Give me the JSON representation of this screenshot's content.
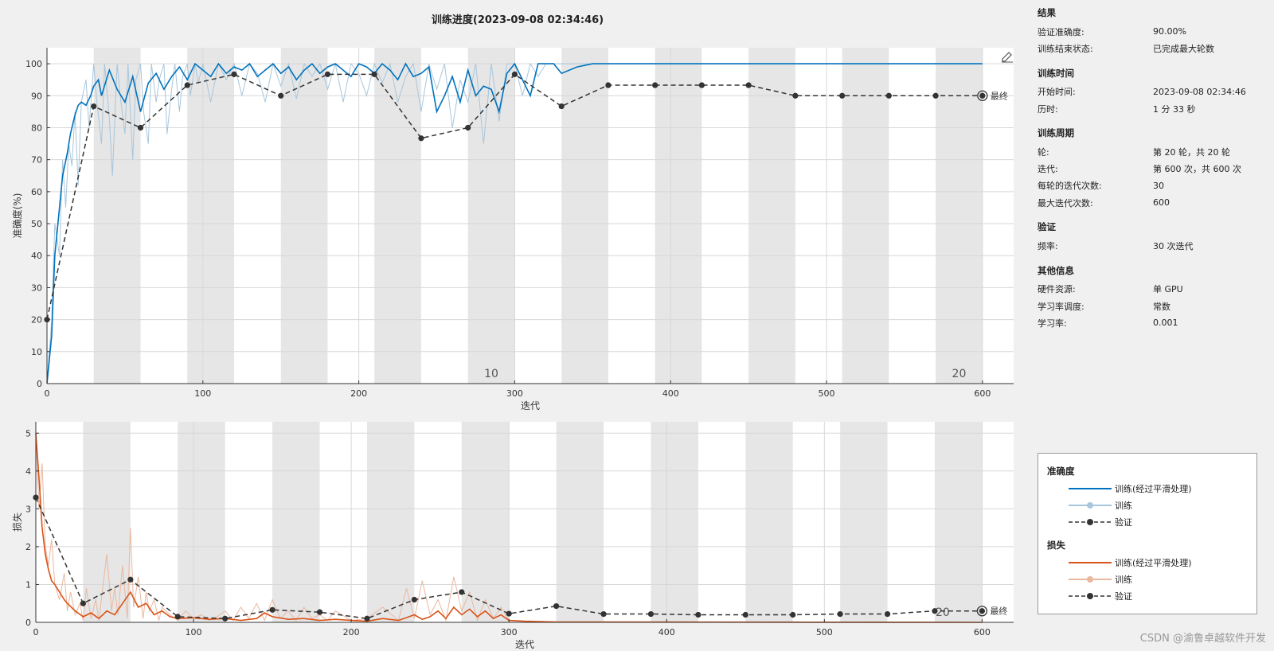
{
  "window": {
    "title": "训练进度(2023-09-08 02:34:46)"
  },
  "info": {
    "sections": [
      {
        "title": "结果",
        "rows": [
          {
            "k": "验证准确度:",
            "v": "90.00%"
          },
          {
            "k": "训练结束状态:",
            "v": "已完成最大轮数"
          }
        ]
      },
      {
        "title": "训练时间",
        "rows": [
          {
            "k": "开始时间:",
            "v": "2023-09-08 02:34:46"
          },
          {
            "k": "历时:",
            "v": "1 分 33 秒"
          }
        ]
      },
      {
        "title": "训练周期",
        "rows": [
          {
            "k": "轮:",
            "v": "第 20 轮，共 20 轮"
          },
          {
            "k": "迭代:",
            "v": "第 600 次，共 600 次"
          },
          {
            "k": "每轮的迭代次数:",
            "v": "30"
          },
          {
            "k": "最大迭代次数:",
            "v": "600"
          }
        ]
      },
      {
        "title": "验证",
        "rows": [
          {
            "k": "频率:",
            "v": "30 次迭代"
          }
        ]
      },
      {
        "title": "其他信息",
        "rows": [
          {
            "k": "硬件资源:",
            "v": "单 GPU"
          },
          {
            "k": "学习率调度:",
            "v": "常数"
          },
          {
            "k": "学习率:",
            "v": "0.001"
          }
        ]
      }
    ]
  },
  "legend": {
    "accuracy_title": "准确度",
    "loss_title": "损失",
    "smoothed": "训练(经过平滑处理)",
    "train": "训练",
    "validation": "验证"
  },
  "watermark": "CSDN @渝鲁卓越软件开发",
  "colors": {
    "acc_smooth": "#0072bd",
    "acc_raw": "#a8c6dc",
    "loss_smooth": "#d95319",
    "loss_raw": "#eab79f",
    "validation": "#333333",
    "epoch_band": "#e6e6e6"
  },
  "chart_data": [
    {
      "type": "line",
      "title": "",
      "xlabel": "迭代",
      "ylabel": "准确度(%)",
      "xlim": [
        0,
        620
      ],
      "ylim": [
        0,
        105
      ],
      "xticks": [
        0,
        100,
        200,
        300,
        400,
        500,
        600
      ],
      "yticks": [
        0,
        10,
        20,
        30,
        40,
        50,
        60,
        70,
        80,
        90,
        100
      ],
      "iterations_per_epoch": 30,
      "epoch_labels": [
        {
          "epoch": "10",
          "x": 285
        },
        {
          "epoch": "20",
          "x": 585
        }
      ],
      "final_label": "最终",
      "series": [
        {
          "name": "训练(经过平滑处理)",
          "x": [
            0,
            3,
            5,
            8,
            10,
            13,
            15,
            18,
            20,
            22,
            25,
            28,
            30,
            33,
            35,
            40,
            45,
            50,
            55,
            60,
            65,
            70,
            75,
            80,
            85,
            90,
            95,
            100,
            105,
            110,
            115,
            120,
            125,
            130,
            135,
            140,
            145,
            150,
            155,
            160,
            165,
            170,
            175,
            180,
            185,
            190,
            195,
            200,
            205,
            210,
            215,
            220,
            225,
            230,
            235,
            240,
            245,
            250,
            255,
            260,
            265,
            270,
            275,
            280,
            285,
            290,
            295,
            300,
            305,
            310,
            315,
            320,
            325,
            330,
            340,
            350,
            400,
            500,
            600
          ],
          "y": [
            0,
            15,
            40,
            55,
            65,
            72,
            78,
            84,
            87,
            88,
            87,
            90,
            93,
            95,
            90,
            98,
            92,
            88,
            96,
            85,
            94,
            97,
            92,
            96,
            99,
            95,
            100,
            98,
            96,
            100,
            97,
            99,
            98,
            100,
            96,
            98,
            100,
            97,
            99,
            95,
            98,
            100,
            97,
            99,
            100,
            98,
            96,
            100,
            99,
            97,
            100,
            98,
            95,
            100,
            96,
            97,
            99,
            85,
            90,
            96,
            88,
            98,
            90,
            93,
            92,
            85,
            97,
            100,
            95,
            90,
            100,
            100,
            100,
            97,
            99,
            100,
            100,
            100,
            100
          ]
        },
        {
          "name": "训练",
          "x": [
            0,
            3,
            5,
            8,
            10,
            12,
            14,
            16,
            18,
            20,
            22,
            25,
            27,
            30,
            32,
            35,
            37,
            40,
            42,
            45,
            47,
            50,
            52,
            55,
            57,
            60,
            62,
            65,
            67,
            70,
            72,
            75,
            77,
            80,
            82,
            85,
            87,
            90,
            92,
            95,
            97,
            100,
            105,
            110,
            115,
            120,
            125,
            130,
            135,
            140,
            145,
            150,
            155,
            160,
            165,
            170,
            175,
            180,
            185,
            190,
            195,
            200,
            205,
            210,
            215,
            220,
            225,
            230,
            235,
            240,
            245,
            250,
            255,
            260,
            265,
            270,
            275,
            280,
            285,
            290,
            295,
            300,
            305,
            310,
            315,
            320,
            330,
            600
          ],
          "y": [
            0,
            20,
            50,
            40,
            70,
            55,
            75,
            68,
            85,
            62,
            88,
            95,
            80,
            100,
            88,
            75,
            100,
            83,
            65,
            100,
            90,
            78,
            100,
            70,
            95,
            100,
            85,
            75,
            100,
            88,
            95,
            100,
            78,
            92,
            100,
            85,
            96,
            100,
            90,
            100,
            94,
            100,
            88,
            100,
            95,
            100,
            90,
            100,
            97,
            88,
            100,
            93,
            100,
            89,
            100,
            96,
            100,
            92,
            100,
            88,
            100,
            97,
            90,
            100,
            94,
            100,
            88,
            96,
            100,
            85,
            100,
            92,
            100,
            80,
            95,
            88,
            100,
            75,
            100,
            82,
            100,
            100,
            90,
            100,
            96,
            100,
            100,
            100
          ]
        },
        {
          "name": "验证",
          "x": [
            0,
            30,
            60,
            90,
            120,
            150,
            180,
            210,
            240,
            270,
            300,
            330,
            360,
            390,
            420,
            450,
            480,
            510,
            540,
            570,
            600
          ],
          "y": [
            20,
            86.7,
            80,
            93.3,
            96.7,
            90,
            96.7,
            96.7,
            76.7,
            80,
            96.7,
            86.7,
            93.3,
            93.3,
            93.3,
            93.3,
            90,
            90,
            90,
            90,
            90
          ]
        }
      ]
    },
    {
      "type": "line",
      "title": "",
      "xlabel": "迭代",
      "ylabel": "损失",
      "xlim": [
        0,
        620
      ],
      "ylim": [
        0,
        5.3
      ],
      "xticks": [
        0,
        100,
        200,
        300,
        400,
        500,
        600
      ],
      "yticks": [
        0,
        1,
        2,
        3,
        4,
        5
      ],
      "iterations_per_epoch": 30,
      "epoch_labels": [
        {
          "epoch": "20",
          "x": 575
        }
      ],
      "final_label": "最终",
      "series": [
        {
          "name": "训练(经过平滑处理)",
          "x": [
            0,
            2,
            4,
            6,
            8,
            10,
            12,
            15,
            18,
            20,
            25,
            30,
            35,
            40,
            45,
            50,
            55,
            60,
            65,
            70,
            75,
            80,
            85,
            90,
            100,
            110,
            120,
            130,
            140,
            145,
            150,
            160,
            170,
            180,
            190,
            200,
            210,
            220,
            230,
            240,
            245,
            250,
            255,
            260,
            265,
            270,
            275,
            280,
            285,
            290,
            295,
            300,
            310,
            320,
            330,
            600
          ],
          "y": [
            5.0,
            3.8,
            2.5,
            1.8,
            1.4,
            1.1,
            1.0,
            0.8,
            0.6,
            0.5,
            0.3,
            0.15,
            0.25,
            0.1,
            0.3,
            0.2,
            0.5,
            0.8,
            0.4,
            0.5,
            0.2,
            0.3,
            0.15,
            0.1,
            0.12,
            0.08,
            0.1,
            0.05,
            0.1,
            0.25,
            0.15,
            0.08,
            0.1,
            0.05,
            0.08,
            0.05,
            0.03,
            0.1,
            0.05,
            0.2,
            0.08,
            0.15,
            0.3,
            0.1,
            0.4,
            0.2,
            0.35,
            0.15,
            0.3,
            0.1,
            0.2,
            0.05,
            0.03,
            0.02,
            0.01,
            0.0
          ]
        },
        {
          "name": "训练",
          "x": [
            0,
            2,
            4,
            6,
            8,
            10,
            12,
            15,
            18,
            20,
            22,
            25,
            28,
            30,
            32,
            35,
            38,
            40,
            45,
            48,
            50,
            52,
            55,
            58,
            60,
            62,
            65,
            68,
            70,
            72,
            75,
            78,
            80,
            85,
            90,
            95,
            100,
            105,
            110,
            115,
            120,
            125,
            130,
            135,
            140,
            145,
            150,
            155,
            160,
            165,
            170,
            175,
            180,
            185,
            190,
            200,
            210,
            220,
            230,
            235,
            240,
            245,
            250,
            255,
            260,
            265,
            270,
            275,
            280,
            285,
            290,
            295,
            300,
            310,
            320,
            330,
            600
          ],
          "y": [
            5.0,
            3.0,
            4.2,
            2.0,
            1.5,
            2.2,
            1.0,
            0.6,
            1.3,
            0.3,
            0.8,
            0.2,
            0.5,
            0.05,
            0.9,
            0.1,
            0.6,
            0.05,
            1.8,
            0.3,
            0.9,
            0.2,
            1.5,
            0.1,
            2.5,
            0.4,
            1.2,
            0.1,
            0.8,
            0.3,
            0.6,
            0.05,
            0.4,
            0.2,
            0.05,
            0.3,
            0.1,
            0.2,
            0.05,
            0.15,
            0.3,
            0.05,
            0.4,
            0.1,
            0.5,
            0.05,
            0.6,
            0.1,
            0.3,
            0.05,
            0.4,
            0.1,
            0.2,
            0.05,
            0.3,
            0.05,
            0.1,
            0.4,
            0.05,
            0.9,
            0.1,
            1.1,
            0.2,
            0.6,
            0.05,
            1.2,
            0.3,
            0.8,
            0.05,
            0.6,
            0.1,
            0.4,
            0.05,
            0.02,
            0.01,
            0.01,
            0.0
          ]
        },
        {
          "name": "验证",
          "x": [
            0,
            30,
            60,
            90,
            120,
            150,
            180,
            210,
            240,
            270,
            300,
            330,
            360,
            390,
            420,
            450,
            480,
            510,
            540,
            570,
            600
          ],
          "y": [
            3.3,
            0.5,
            1.13,
            0.15,
            0.1,
            0.33,
            0.27,
            0.1,
            0.6,
            0.8,
            0.23,
            0.43,
            0.22,
            0.22,
            0.2,
            0.2,
            0.2,
            0.22,
            0.22,
            0.3,
            0.3
          ]
        }
      ]
    }
  ]
}
